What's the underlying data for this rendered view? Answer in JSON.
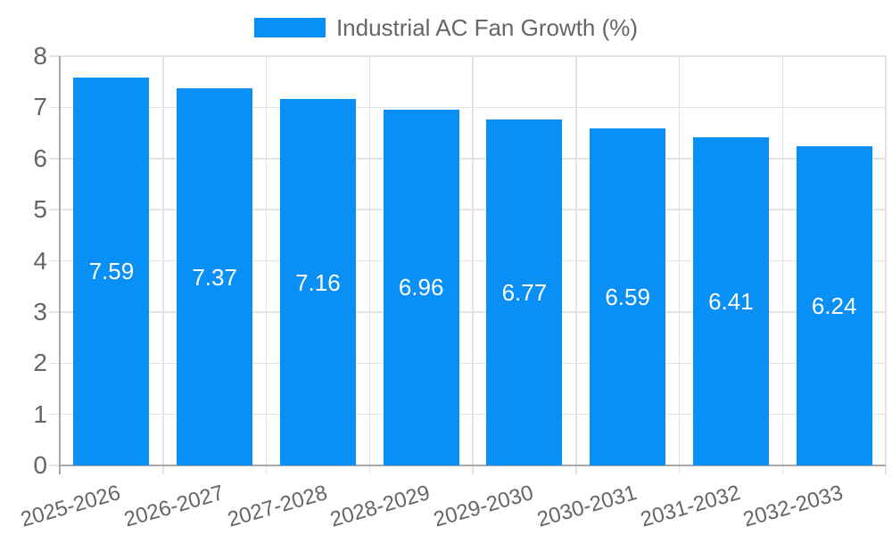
{
  "chart_data": {
    "type": "bar",
    "title": "Industrial AC Fan Growth (%)",
    "categories": [
      "2025-2026",
      "2026-2027",
      "2027-2028",
      "2028-2029",
      "2029-2030",
      "2030-2031",
      "2031-2032",
      "2032-2033"
    ],
    "values": [
      7.59,
      7.37,
      7.16,
      6.96,
      6.77,
      6.59,
      6.41,
      6.24
    ],
    "value_labels": [
      "7.59",
      "7.37",
      "7.16",
      "6.96",
      "6.77",
      "6.59",
      "6.41",
      "6.24"
    ],
    "xlabel": "",
    "ylabel": "",
    "ylim": [
      0,
      8
    ],
    "ytick_step": 1,
    "yticks": [
      "0",
      "1",
      "2",
      "3",
      "4",
      "5",
      "6",
      "7",
      "8"
    ],
    "grid": "on",
    "legend_position": "top-center",
    "colors": {
      "bar": "#0890f7",
      "grid": "#e4e4e4",
      "axis": "#a8a8a8",
      "tick_text": "#666666",
      "legend_text": "#666666",
      "bar_label_text": "#ffffff",
      "background": "#ffffff"
    }
  }
}
